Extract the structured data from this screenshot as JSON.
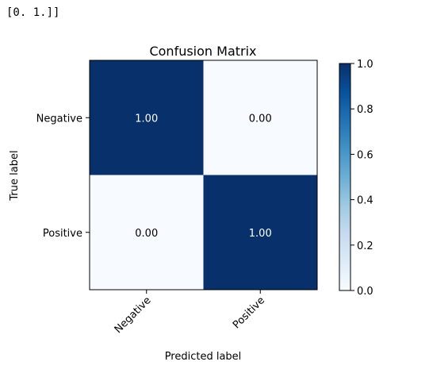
{
  "console": {
    "output": "[0. 1.]]"
  },
  "chart_data": {
    "type": "heatmap",
    "title": "Confusion Matrix",
    "xlabel": "Predicted label",
    "ylabel": "True label",
    "row_labels": [
      "Negative",
      "Positive"
    ],
    "col_labels": [
      "Negative",
      "Positive"
    ],
    "values": [
      [
        1.0,
        0.0
      ],
      [
        0.0,
        1.0
      ]
    ],
    "cell_labels": [
      [
        "1.00",
        "0.00"
      ],
      [
        "0.00",
        "1.00"
      ]
    ],
    "colormap": "Blues",
    "color_low": "#f7fbff",
    "color_high": "#08306b",
    "colorbar": {
      "range": [
        0.0,
        1.0
      ],
      "ticks": [
        0.0,
        0.2,
        0.4,
        0.6,
        0.8,
        1.0
      ],
      "tick_labels": [
        "0.0",
        "0.2",
        "0.4",
        "0.6",
        "0.8",
        "1.0"
      ]
    }
  }
}
